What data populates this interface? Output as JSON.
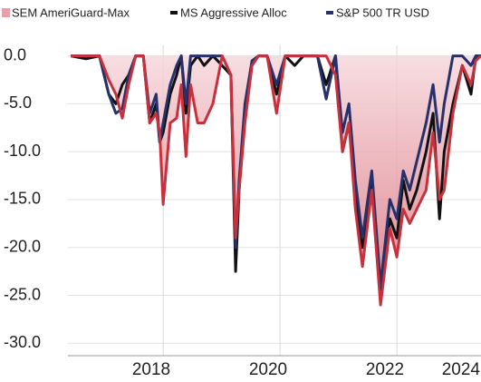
{
  "chart_data": {
    "type": "line",
    "x": [
      2016.42,
      2016.68,
      2016.91,
      2017.07,
      2017.19,
      2017.3,
      2017.41,
      2017.53,
      2017.66,
      2017.77,
      2017.88,
      2017.94,
      2018.0,
      2018.12,
      2018.23,
      2018.31,
      2018.39,
      2018.47,
      2018.59,
      2018.7,
      2018.85,
      2019.01,
      2019.16,
      2019.24,
      2019.3,
      2019.4,
      2019.52,
      2019.63,
      2019.78,
      2019.94,
      2020.09,
      2020.25,
      2020.4,
      2020.64,
      2020.79,
      2020.95,
      2021.07,
      2021.18,
      2021.29,
      2021.41,
      2021.57,
      2021.72,
      2021.88,
      2022.0,
      2022.11,
      2022.22,
      2022.34,
      2022.5,
      2022.62,
      2022.73,
      2022.81,
      2022.96,
      2023.12,
      2023.27,
      2023.35,
      2023.44
    ],
    "series": [
      {
        "name": "SEM AmeriGuard-Max",
        "color": "#c8303c",
        "fill_color": "#e8a0a8",
        "values": [
          0,
          0,
          0,
          -2.5,
          -4,
          -6.5,
          -3,
          0,
          0,
          -7,
          -6,
          -8,
          -15.5,
          -7,
          -6.5,
          -3,
          -10.5,
          -3,
          -7,
          -7,
          -5,
          0,
          -2,
          -19,
          -14,
          -7,
          -1,
          0,
          0,
          -6,
          0,
          0,
          0,
          0,
          0,
          -2,
          -10,
          -7,
          -16,
          -22,
          -14,
          -26,
          -18,
          -21,
          -16,
          -17.5,
          -16,
          -14,
          -8,
          -15,
          -14,
          -6,
          -1,
          -3,
          -0.5,
          0
        ]
      },
      {
        "name": "MS Aggressive Alloc",
        "color": "#111111",
        "values": [
          0,
          -0.3,
          0,
          -4,
          -5,
          -3,
          -2,
          0,
          0,
          -7,
          -5,
          -9,
          -8,
          -4,
          -2,
          0,
          -6,
          -1,
          0,
          -1,
          0,
          -1,
          -2,
          -22.5,
          -14,
          -6,
          -1,
          0,
          0,
          -4,
          0,
          -1,
          0,
          0,
          -3,
          0,
          -10,
          -7,
          -14,
          -20,
          -13,
          -25,
          -17,
          -19,
          -13,
          -16,
          -14,
          -10,
          -6,
          -17,
          -10,
          -5,
          -1,
          -4,
          0,
          0
        ]
      },
      {
        "name": "S&P 500 TR USD",
        "color": "#26306a",
        "values": [
          0,
          0,
          0,
          -4,
          -6,
          -5.5,
          -2,
          0,
          0,
          -6,
          -4,
          -9,
          -7,
          -3,
          -1,
          0,
          -5,
          0,
          0,
          0,
          0,
          0,
          -2,
          -20,
          -13,
          -5,
          -0.5,
          0,
          0,
          -3,
          0,
          0,
          0,
          0,
          -4.5,
          0,
          -8,
          -5,
          -13,
          -19,
          -12,
          -24,
          -15,
          -17,
          -12,
          -14,
          -11,
          -7,
          -3,
          -9,
          -5,
          0,
          0,
          -1,
          0,
          0
        ]
      }
    ],
    "xlim": [
      2016.37,
      2023.44
    ],
    "xticks": [
      2018,
      2020,
      2022,
      2024
    ],
    "ylim": [
      -31.3,
      1.1
    ],
    "yticks": [
      {
        "value": 0,
        "label": "0.0"
      },
      {
        "value": -5,
        "label": "-5.0"
      },
      {
        "value": -10,
        "label": "-10.0"
      },
      {
        "value": -15,
        "label": "-15.0"
      },
      {
        "value": -20,
        "label": "-20.0"
      },
      {
        "value": -25,
        "label": "-25.0"
      },
      {
        "value": -30,
        "label": "-30.0"
      }
    ],
    "grid": true
  }
}
